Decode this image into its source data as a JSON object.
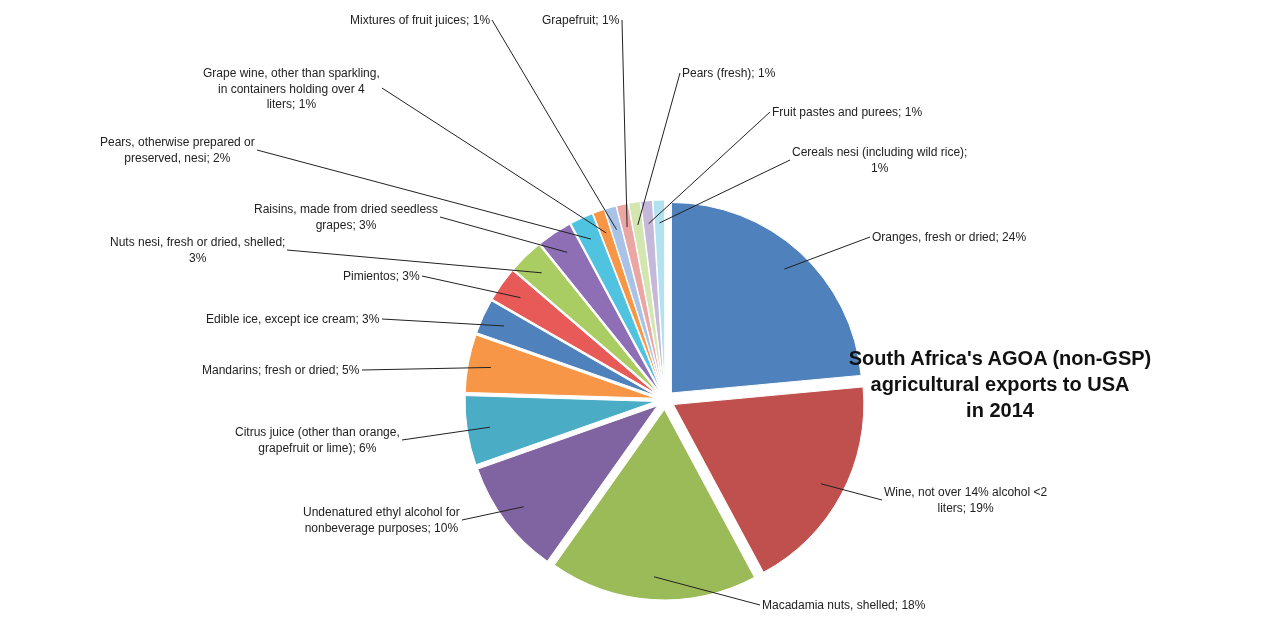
{
  "chart_data": {
    "type": "pie",
    "title": "South Africa's AGOA (non-GSP) agricultural exports to USA in 2014",
    "categories": [
      "Oranges, fresh or dried; 24%",
      "Wine, not over 14% alcohol <2 liters; 19%",
      "Macadamia nuts, shelled; 18%",
      "Undenatured ethyl alcohol for nonbeverage purposes; 10%",
      "Citrus juice (other than orange, grapefruit or lime); 6%",
      "Mandarins; fresh or dried; 5%",
      "Edible ice, except ice cream; 3%",
      "Pimientos; 3%",
      "Nuts nesi, fresh or dried, shelled; 3%",
      "Raisins, made from dried seedless grapes; 3%",
      "Pears, otherwise prepared or preserved, nesi; 2%",
      "Grape wine, other than sparkling, in containers holding over 4 liters; 1%",
      "Mixtures of fruit juices; 1%",
      "Grapefruit; 1%",
      "Pears (fresh); 1%",
      "Fruit pastes and purees; 1%",
      "Cereals nesi (including wild rice); 1%"
    ],
    "values": [
      24,
      19,
      18,
      10,
      6,
      5,
      3,
      3,
      3,
      3,
      2,
      1,
      1,
      1,
      1,
      1,
      1
    ],
    "colors": [
      "#4f81bd",
      "#c0504d",
      "#9bbb59",
      "#8064a2",
      "#4bacc6",
      "#f79646",
      "#4f81bd",
      "#e85a57",
      "#a9cc63",
      "#8e6fb5",
      "#4fc3e0",
      "#f79646",
      "#a9c3e8",
      "#eba6a4",
      "#d3e6b0",
      "#c5b8d8",
      "#b2e2f0"
    ],
    "legend": false
  }
}
